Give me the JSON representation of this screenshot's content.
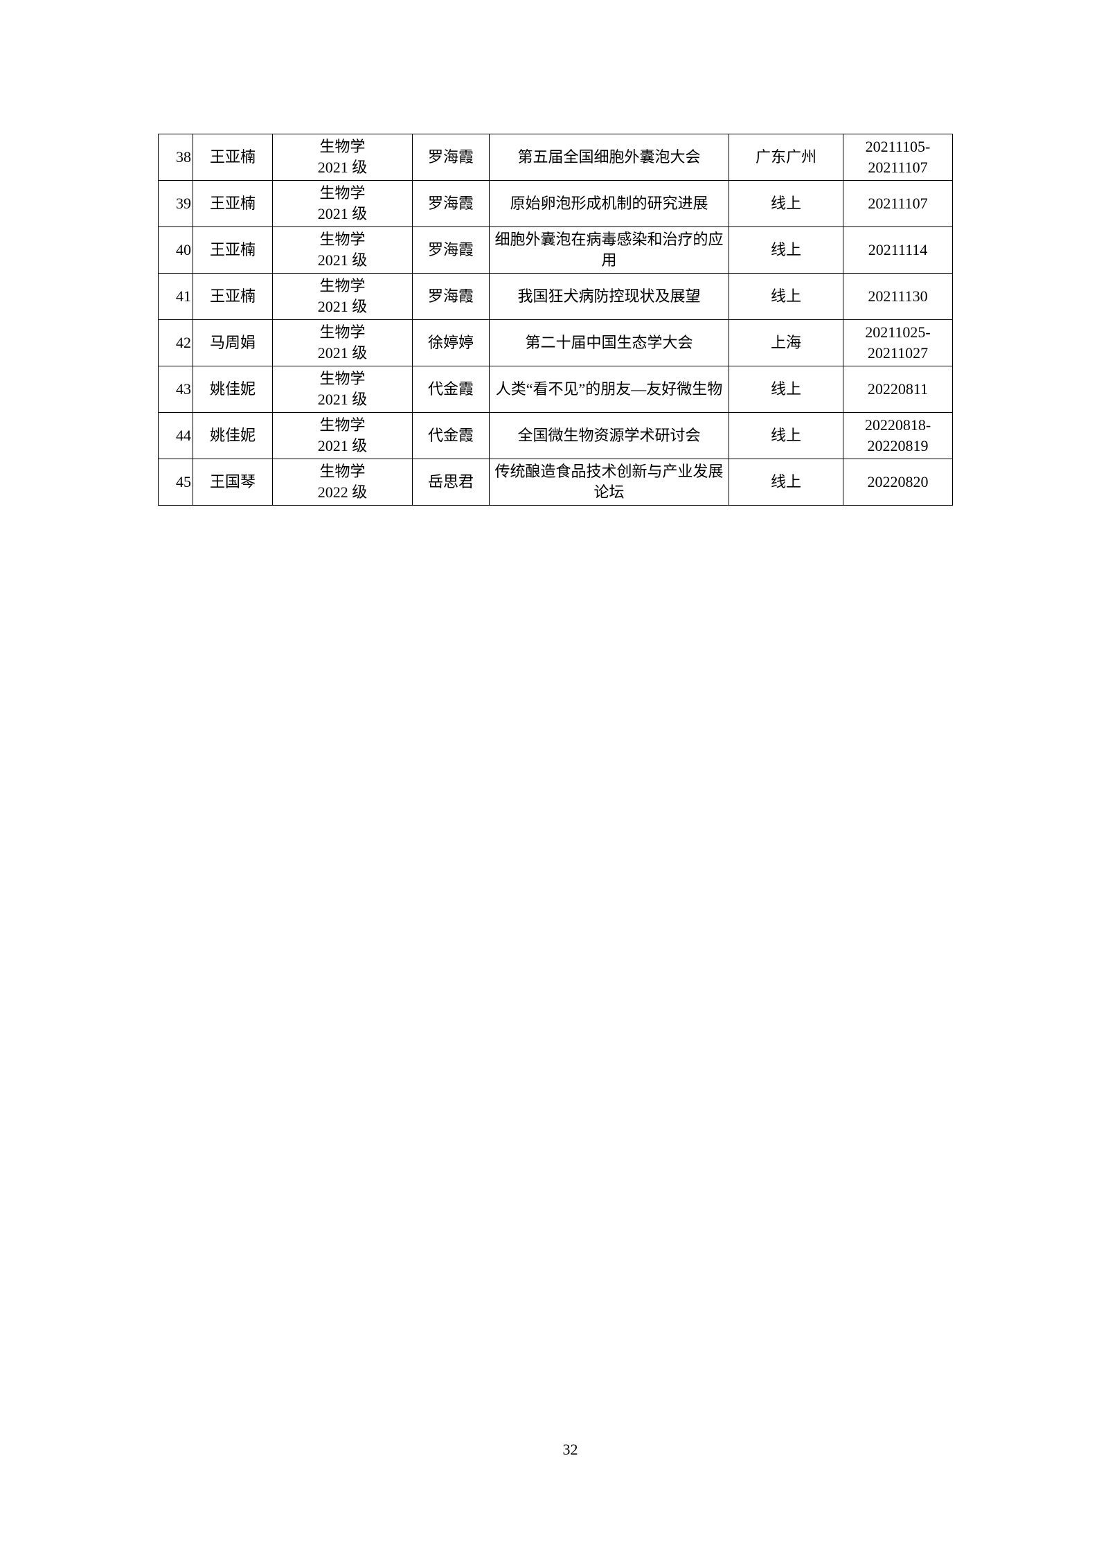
{
  "table": {
    "rows": [
      {
        "no": "38",
        "name": "王亚楠",
        "major": "生物学",
        "grade": "2021 级",
        "advisor": "罗海霞",
        "event": "第五届全国细胞外囊泡大会",
        "location": "广东广州",
        "date": "20211105-20211107"
      },
      {
        "no": "39",
        "name": "王亚楠",
        "major": "生物学",
        "grade": "2021 级",
        "advisor": "罗海霞",
        "event": "原始卵泡形成机制的研究进展",
        "location": "线上",
        "date": "20211107"
      },
      {
        "no": "40",
        "name": "王亚楠",
        "major": "生物学",
        "grade": "2021 级",
        "advisor": "罗海霞",
        "event": "细胞外囊泡在病毒感染和治疗的应用",
        "location": "线上",
        "date": "20211114"
      },
      {
        "no": "41",
        "name": "王亚楠",
        "major": "生物学",
        "grade": "2021 级",
        "advisor": "罗海霞",
        "event": "我国狂犬病防控现状及展望",
        "location": "线上",
        "date": "20211130"
      },
      {
        "no": "42",
        "name": "马周娟",
        "major": "生物学",
        "grade": "2021 级",
        "advisor": "徐婷婷",
        "event": "第二十届中国生态学大会",
        "location": "上海",
        "date": "20211025-20211027"
      },
      {
        "no": "43",
        "name": "姚佳妮",
        "major": "生物学",
        "grade": "2021 级",
        "advisor": "代金霞",
        "event": "人类“看不见”的朋友—友好微生物",
        "location": "线上",
        "date": "20220811"
      },
      {
        "no": "44",
        "name": "姚佳妮",
        "major": "生物学",
        "grade": "2021 级",
        "advisor": "代金霞",
        "event": "全国微生物资源学术研讨会",
        "location": "线上",
        "date": "20220818-20220819"
      },
      {
        "no": "45",
        "name": "王国琴",
        "major": "生物学",
        "grade": "2022 级",
        "advisor": "岳思君",
        "event": "传统酿造食品技术创新与产业发展论坛",
        "location": "线上",
        "date": "20220820"
      }
    ]
  },
  "page_number": "32"
}
